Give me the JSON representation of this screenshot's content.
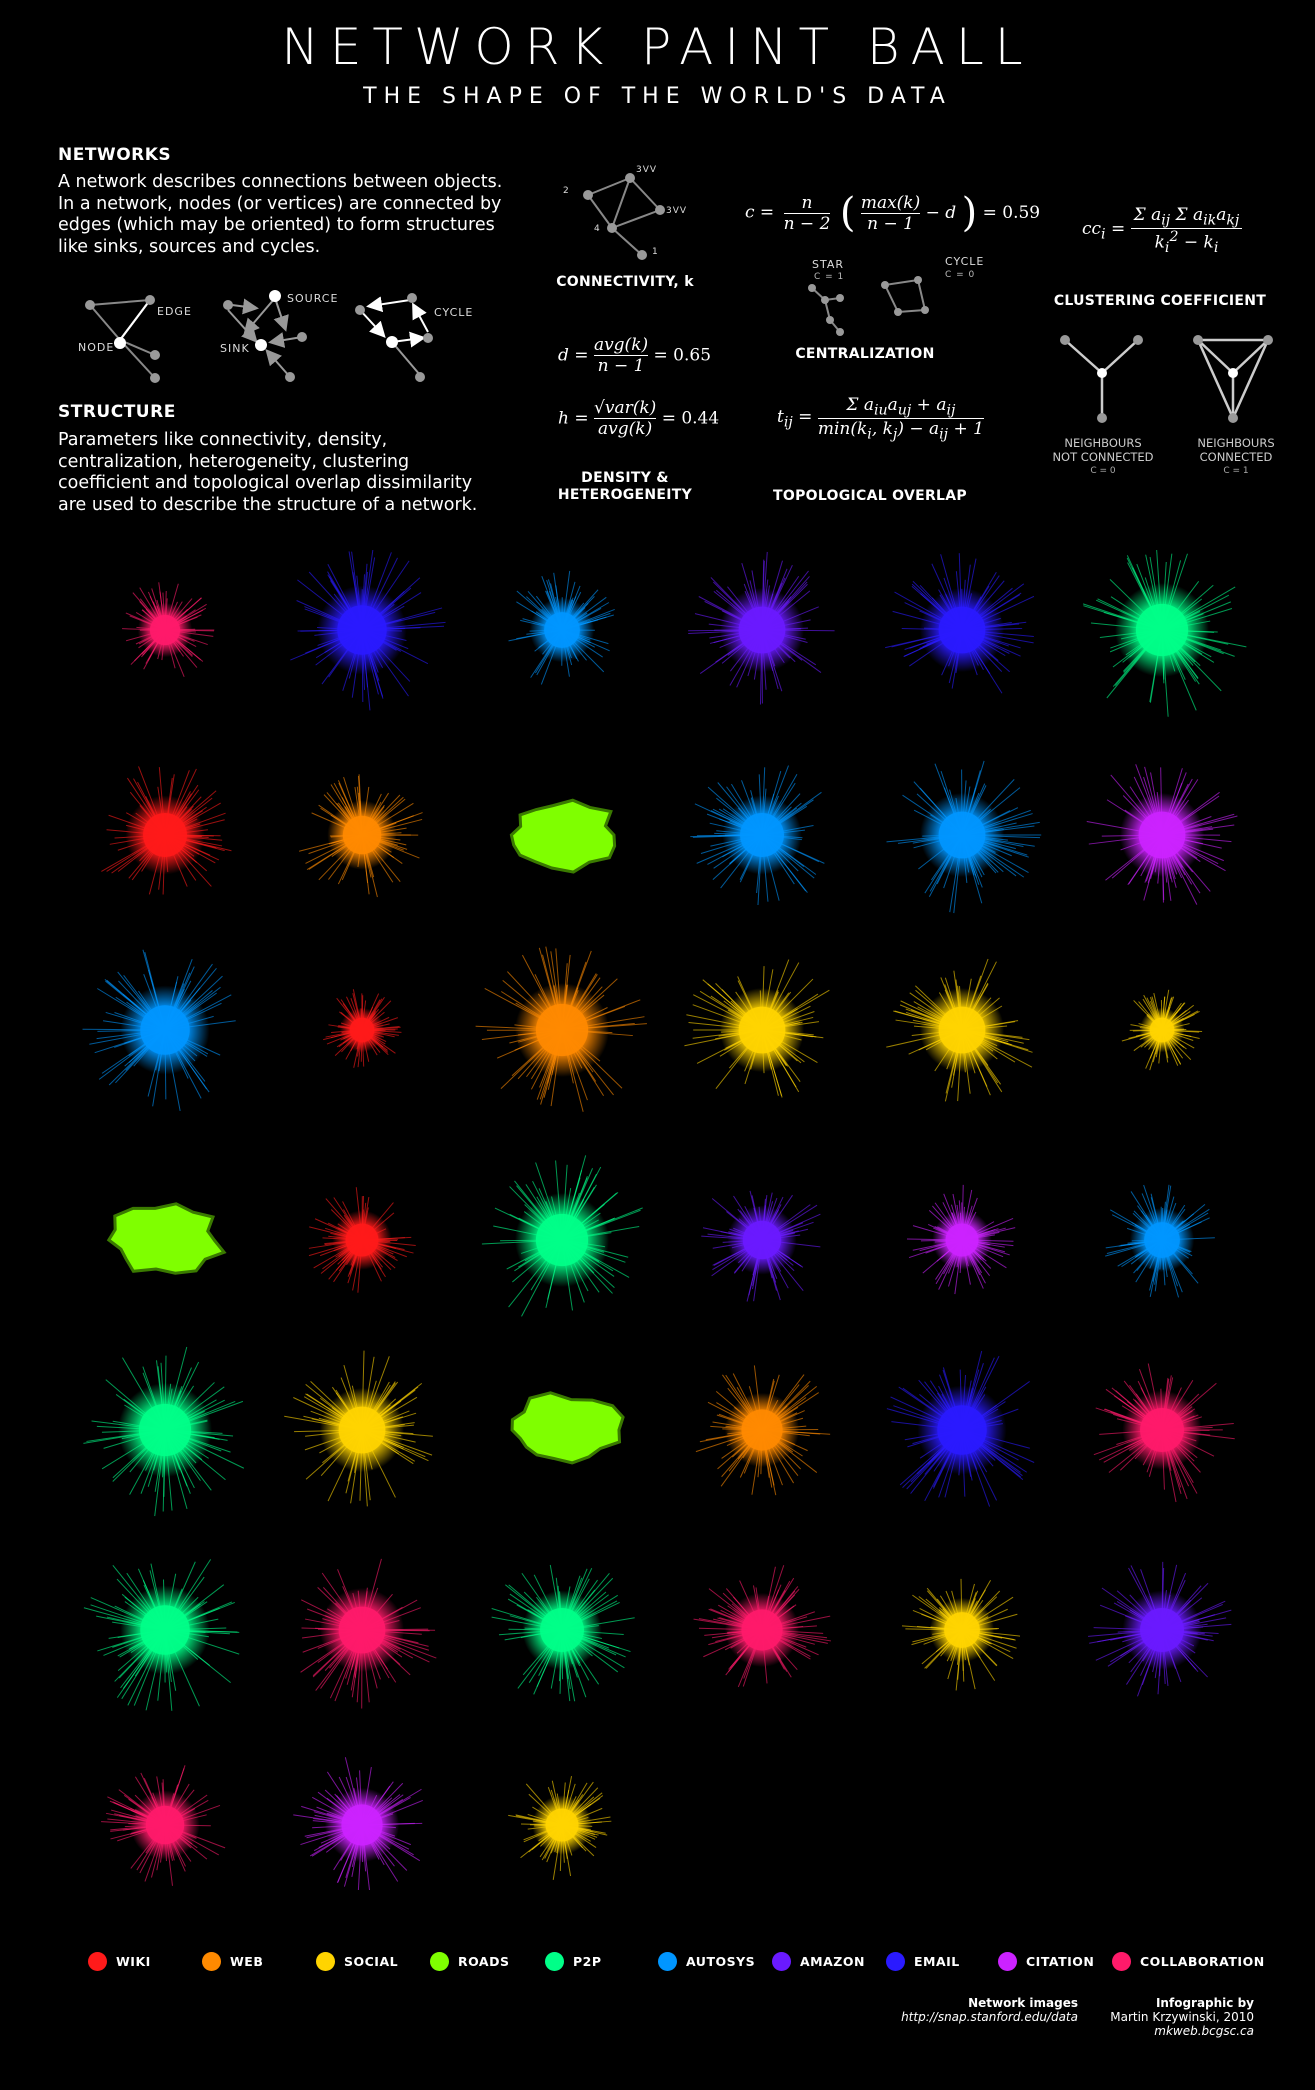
{
  "header": {
    "title": "NETWORK PAINT BALL",
    "subtitle": "THE SHAPE OF THE WORLD'S DATA"
  },
  "networks": {
    "heading": "NETWORKS",
    "text": "A network describes connections between objects. In a network, nodes (or vertices) are connected by edges (which may be oriented) to form structures like sinks, sources and cycles.",
    "labels": {
      "edge": "EDGE",
      "node": "NODE",
      "source": "SOURCE",
      "sink": "SINK",
      "cycle": "CYCLE"
    }
  },
  "structure": {
    "heading": "STRUCTURE",
    "text": "Parameters like connectivity, density, centralization, heterogeneity, clustering coefficient and topological overlap dissimilarity are used to describe the structure of a network."
  },
  "connectivity": {
    "label": "CONNECTIVITY, k",
    "nodes": {
      "n2": "2",
      "n3a": "3VV",
      "n3b": "3VV",
      "n4": "4",
      "n1": "1"
    }
  },
  "centralization": {
    "label": "CENTRALIZATION",
    "value": "= 0.59",
    "star": "STAR",
    "star_c": "C = 1",
    "cycle": "CYCLE",
    "cycle_c": "C = 0"
  },
  "density": {
    "label_1": "DENSITY &",
    "label_2": "HETEROGENEITY",
    "d_value": "= 0.65",
    "h_value": "= 0.44"
  },
  "topological": {
    "label": "TOPOLOGICAL OVERLAP"
  },
  "clustering": {
    "label": "CLUSTERING COEFFICIENT",
    "left_1": "NEIGHBOURS",
    "left_2": "NOT CONNECTED",
    "left_c": "C = 0",
    "right_1": "NEIGHBOURS",
    "right_2": "CONNECTED",
    "right_c": "C = 1"
  },
  "legend": [
    {
      "name": "WIKI",
      "color": "#ff1a1a"
    },
    {
      "name": "WEB",
      "color": "#ff8a00"
    },
    {
      "name": "SOCIAL",
      "color": "#ffd400"
    },
    {
      "name": "ROADS",
      "color": "#7fff00"
    },
    {
      "name": "P2P",
      "color": "#00ff88"
    },
    {
      "name": "AUTOSYS",
      "color": "#0096ff"
    },
    {
      "name": "AMAZON",
      "color": "#6a1aff"
    },
    {
      "name": "EMAIL",
      "color": "#2a1aff"
    },
    {
      "name": "CITATION",
      "color": "#cc22ff"
    },
    {
      "name": "COLLABORATION",
      "color": "#ff1a6a"
    }
  ],
  "blobs": [
    {
      "category": "COLLABORATION",
      "size": 0.55
    },
    {
      "category": "EMAIL",
      "size": 0.9
    },
    {
      "category": "AUTOSYS",
      "size": 0.65
    },
    {
      "category": "AMAZON",
      "size": 0.85
    },
    {
      "category": "EMAIL",
      "size": 0.85
    },
    {
      "category": "P2P",
      "size": 0.95
    },
    {
      "category": "WIKI",
      "size": 0.8
    },
    {
      "category": "WEB",
      "size": 0.7
    },
    {
      "category": "ROADS",
      "size": 1.0
    },
    {
      "category": "AUTOSYS",
      "size": 0.8
    },
    {
      "category": "AUTOSYS",
      "size": 0.85
    },
    {
      "category": "CITATION",
      "size": 0.85
    },
    {
      "category": "AUTOSYS",
      "size": 0.9
    },
    {
      "category": "WIKI",
      "size": 0.45
    },
    {
      "category": "WEB",
      "size": 0.95
    },
    {
      "category": "SOCIAL",
      "size": 0.85
    },
    {
      "category": "SOCIAL",
      "size": 0.85
    },
    {
      "category": "SOCIAL",
      "size": 0.45
    },
    {
      "category": "ROADS",
      "size": 1.0
    },
    {
      "category": "WIKI",
      "size": 0.6
    },
    {
      "category": "P2P",
      "size": 0.95
    },
    {
      "category": "AMAZON",
      "size": 0.7
    },
    {
      "category": "CITATION",
      "size": 0.6
    },
    {
      "category": "AUTOSYS",
      "size": 0.65
    },
    {
      "category": "P2P",
      "size": 0.95
    },
    {
      "category": "SOCIAL",
      "size": 0.85
    },
    {
      "category": "ROADS",
      "size": 1.0
    },
    {
      "category": "WEB",
      "size": 0.75
    },
    {
      "category": "EMAIL",
      "size": 0.9
    },
    {
      "category": "COLLABORATION",
      "size": 0.8
    },
    {
      "category": "P2P",
      "size": 0.9
    },
    {
      "category": "COLLABORATION",
      "size": 0.85
    },
    {
      "category": "P2P",
      "size": 0.8
    },
    {
      "category": "COLLABORATION",
      "size": 0.75
    },
    {
      "category": "SOCIAL",
      "size": 0.65
    },
    {
      "category": "AMAZON",
      "size": 0.8
    },
    {
      "category": "COLLABORATION",
      "size": 0.7
    },
    {
      "category": "CITATION",
      "size": 0.75
    },
    {
      "category": "SOCIAL",
      "size": 0.6
    }
  ],
  "credits": {
    "images_label": "Network images",
    "images_url": "http://snap.stanford.edu/data",
    "by_label": "Infographic by",
    "author": "Martin Krzywinski, 2010",
    "site": "mkweb.bcgsc.ca"
  }
}
